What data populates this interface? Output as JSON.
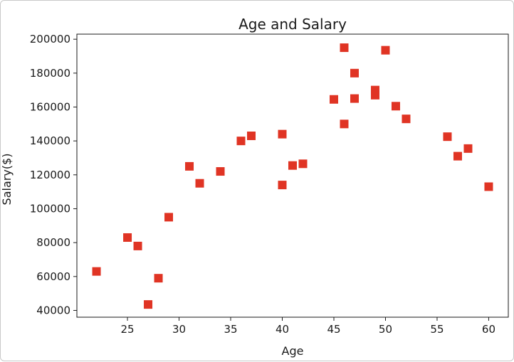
{
  "chart_data": {
    "type": "scatter",
    "title": "Age and Salary",
    "xlabel": "Age",
    "ylabel": "Salary($)",
    "xlim": [
      20.1,
      61.9
    ],
    "ylim": [
      36000,
      203000
    ],
    "xticks": [
      25,
      30,
      35,
      40,
      45,
      50,
      55,
      60
    ],
    "yticks": [
      40000,
      60000,
      80000,
      100000,
      120000,
      140000,
      160000,
      180000,
      200000
    ],
    "grid": false,
    "marker": "square",
    "color": "#e03424",
    "points": [
      {
        "x": 22,
        "y": 63000
      },
      {
        "x": 25,
        "y": 83000
      },
      {
        "x": 26,
        "y": 78000
      },
      {
        "x": 27,
        "y": 43500
      },
      {
        "x": 28,
        "y": 59000
      },
      {
        "x": 29,
        "y": 95000
      },
      {
        "x": 31,
        "y": 125000
      },
      {
        "x": 32,
        "y": 115000
      },
      {
        "x": 34,
        "y": 122000
      },
      {
        "x": 36,
        "y": 140000
      },
      {
        "x": 37,
        "y": 143000
      },
      {
        "x": 40,
        "y": 144000
      },
      {
        "x": 40,
        "y": 114000
      },
      {
        "x": 41,
        "y": 125500
      },
      {
        "x": 42,
        "y": 126500
      },
      {
        "x": 45,
        "y": 164500
      },
      {
        "x": 46,
        "y": 195000
      },
      {
        "x": 46,
        "y": 150000
      },
      {
        "x": 47,
        "y": 180000
      },
      {
        "x": 47,
        "y": 165000
      },
      {
        "x": 49,
        "y": 170000
      },
      {
        "x": 49,
        "y": 167000
      },
      {
        "x": 50,
        "y": 193500
      },
      {
        "x": 51,
        "y": 160500
      },
      {
        "x": 52,
        "y": 153000
      },
      {
        "x": 56,
        "y": 142500
      },
      {
        "x": 57,
        "y": 131000
      },
      {
        "x": 58,
        "y": 135500
      },
      {
        "x": 60,
        "y": 113000
      }
    ]
  }
}
